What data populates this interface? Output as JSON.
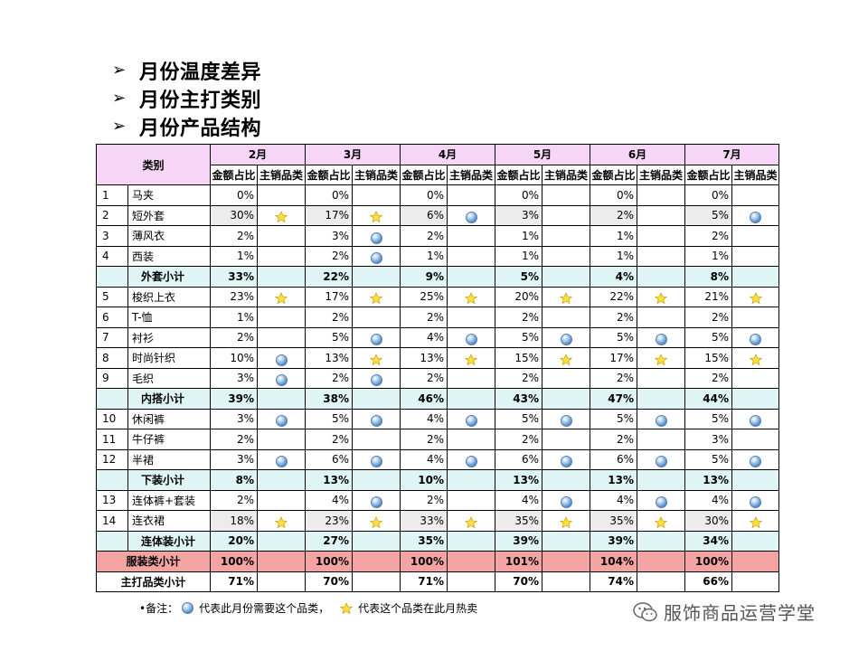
{
  "bullets": [
    "月份温度差异",
    "月份主打类别",
    "月份产品结构"
  ],
  "table": {
    "category_header": "类别",
    "months": [
      "2月",
      "3月",
      "4月",
      "5月",
      "6月",
      "7月"
    ],
    "sub_headers": [
      "金额占比",
      "主销品类"
    ],
    "rows": [
      {
        "type": "item",
        "idx": "1",
        "name": "马夹",
        "vals": [
          "0%",
          "0%",
          "0%",
          "0%",
          "0%",
          "0%"
        ],
        "icons": [
          "",
          "",
          "",
          "",
          "",
          ""
        ]
      },
      {
        "type": "item",
        "idx": "2",
        "name": "短外套",
        "shade": true,
        "vals": [
          "30%",
          "17%",
          "6%",
          "3%",
          "2%",
          "5%"
        ],
        "icons": [
          "star",
          "star",
          "globe",
          "",
          "",
          "globe"
        ]
      },
      {
        "type": "item",
        "idx": "3",
        "name": "薄风衣",
        "vals": [
          "2%",
          "3%",
          "2%",
          "1%",
          "1%",
          "2%"
        ],
        "icons": [
          "",
          "globe",
          "",
          "",
          "",
          ""
        ]
      },
      {
        "type": "item",
        "idx": "4",
        "name": "西装",
        "vals": [
          "1%",
          "2%",
          "1%",
          "1%",
          "1%",
          "1%"
        ],
        "icons": [
          "",
          "globe",
          "",
          "",
          "",
          ""
        ]
      },
      {
        "type": "subtotal",
        "name": "外套小计",
        "vals": [
          "33%",
          "22%",
          "9%",
          "5%",
          "4%",
          "8%"
        ]
      },
      {
        "type": "item",
        "idx": "5",
        "name": "梭织上衣",
        "vals": [
          "23%",
          "17%",
          "25%",
          "20%",
          "22%",
          "21%"
        ],
        "icons": [
          "star",
          "star",
          "star",
          "star",
          "star",
          "star"
        ]
      },
      {
        "type": "item",
        "idx": "6",
        "name": "T-恤",
        "vals": [
          "1%",
          "2%",
          "2%",
          "2%",
          "2%",
          "2%"
        ],
        "icons": [
          "",
          "",
          "",
          "",
          "",
          ""
        ]
      },
      {
        "type": "item",
        "idx": "7",
        "name": "衬衫",
        "vals": [
          "2%",
          "5%",
          "4%",
          "5%",
          "5%",
          "5%"
        ],
        "icons": [
          "",
          "globe",
          "globe",
          "globe",
          "globe",
          "globe"
        ]
      },
      {
        "type": "item",
        "idx": "8",
        "name": "时尚针织",
        "vals": [
          "10%",
          "13%",
          "13%",
          "15%",
          "17%",
          "15%"
        ],
        "icons": [
          "globe",
          "star",
          "star",
          "star",
          "star",
          "star"
        ]
      },
      {
        "type": "item",
        "idx": "9",
        "name": "毛织",
        "vals": [
          "3%",
          "2%",
          "2%",
          "2%",
          "2%",
          "2%"
        ],
        "icons": [
          "globe",
          "globe",
          "",
          "",
          "",
          ""
        ]
      },
      {
        "type": "subtotal",
        "name": "内搭小计",
        "vals": [
          "39%",
          "38%",
          "46%",
          "43%",
          "47%",
          "44%"
        ]
      },
      {
        "type": "item",
        "idx": "10",
        "name": "休闲裤",
        "vals": [
          "3%",
          "5%",
          "4%",
          "5%",
          "5%",
          "5%"
        ],
        "icons": [
          "globe",
          "globe",
          "globe",
          "globe",
          "globe",
          "globe"
        ]
      },
      {
        "type": "item",
        "idx": "11",
        "name": "牛仔裤",
        "vals": [
          "2%",
          "2%",
          "2%",
          "2%",
          "2%",
          "3%"
        ],
        "icons": [
          "",
          "",
          "",
          "",
          "",
          ""
        ]
      },
      {
        "type": "item",
        "idx": "12",
        "name": "半裙",
        "vals": [
          "3%",
          "6%",
          "4%",
          "6%",
          "6%",
          "5%"
        ],
        "icons": [
          "globe",
          "globe",
          "globe",
          "globe",
          "globe",
          "globe"
        ]
      },
      {
        "type": "subtotal",
        "name": "下装小计",
        "vals": [
          "8%",
          "13%",
          "10%",
          "13%",
          "13%",
          "13%"
        ]
      },
      {
        "type": "item",
        "idx": "13",
        "name": "连体裤+套装",
        "vals": [
          "2%",
          "4%",
          "2%",
          "4%",
          "4%",
          "4%"
        ],
        "icons": [
          "",
          "globe",
          "",
          "globe",
          "globe",
          "globe"
        ]
      },
      {
        "type": "item",
        "idx": "14",
        "name": "连衣裙",
        "shade": true,
        "vals": [
          "18%",
          "23%",
          "33%",
          "35%",
          "35%",
          "30%"
        ],
        "icons": [
          "star",
          "star",
          "star",
          "star",
          "star",
          "star"
        ]
      },
      {
        "type": "subtotal",
        "name": "连体装小计",
        "vals": [
          "20%",
          "27%",
          "35%",
          "39%",
          "39%",
          "34%"
        ]
      },
      {
        "type": "apparel",
        "name": "服装类小计",
        "vals": [
          "100%",
          "100%",
          "100%",
          "101%",
          "104%",
          "100%"
        ]
      },
      {
        "type": "main",
        "name": "主打品类小计",
        "vals": [
          "71%",
          "70%",
          "71%",
          "70%",
          "74%",
          "66%"
        ]
      }
    ]
  },
  "note": {
    "prefix": "•备注：",
    "globe_text": "代表此月份需要这个品类，",
    "star_text": "代表这个品类在此月热卖"
  },
  "watermark": "服饰商品运营学堂"
}
